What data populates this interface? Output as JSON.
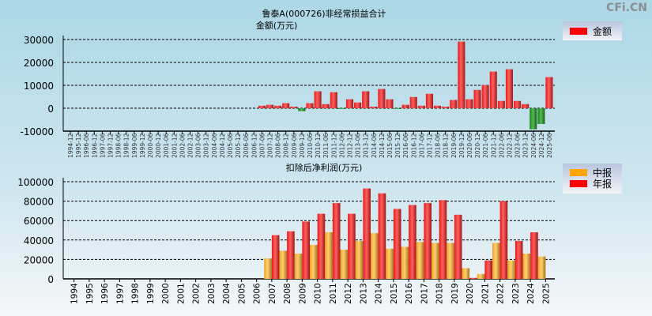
{
  "watermark": "CFi.CN",
  "colors": {
    "positive": "#ff2020",
    "negative": "#2e8b2e",
    "interim": "#f5a623",
    "annual": "#ff2020"
  },
  "chart_data": [
    {
      "type": "bar",
      "title": "鲁泰A(000726)非经常损益合计",
      "ylabel": "金额(万元)",
      "legend": [
        {
          "label": "金额",
          "color": "#ff0000"
        }
      ],
      "legend_position": "top-right",
      "ylim": [
        -10000,
        30000
      ],
      "yticks": [
        30000,
        20000,
        10000,
        0,
        -10000
      ],
      "grid": true,
      "categories": [
        "1994-12",
        "1995-12",
        "1996-06",
        "1996-12",
        "1997-06",
        "1997-12",
        "1998-06",
        "1998-12",
        "1999-06",
        "1999-12",
        "2000-06",
        "2000-12",
        "2001-06",
        "2001-12",
        "2002-06",
        "2002-12",
        "2003-06",
        "2003-12",
        "2004-06",
        "2004-12",
        "2005-06",
        "2005-12",
        "2006-06",
        "2006-12",
        "2007-06",
        "2007-12",
        "2008-06",
        "2008-12",
        "2009-06",
        "2009-12",
        "2010-06",
        "2010-12",
        "2011-06",
        "2011-12",
        "2012-06",
        "2012-12",
        "2013-06",
        "2013-12",
        "2014-06",
        "2014-12",
        "2015-06",
        "2015-12",
        "2016-06",
        "2016-12",
        "2017-06",
        "2017-12",
        "2018-06",
        "2018-12",
        "2019-06",
        "2019-12",
        "2020-06",
        "2020-12",
        "2021-06",
        "2021-12",
        "2022-06",
        "2022-12",
        "2023-06",
        "2023-12",
        "2024-06",
        "2024-12",
        "2025-06"
      ],
      "values": [
        null,
        null,
        null,
        null,
        null,
        null,
        null,
        null,
        null,
        null,
        null,
        null,
        null,
        null,
        null,
        null,
        null,
        null,
        null,
        null,
        null,
        null,
        null,
        null,
        1100,
        1500,
        1100,
        2200,
        700,
        -1300,
        2200,
        7400,
        1800,
        7000,
        -200,
        3900,
        2500,
        7400,
        700,
        8400,
        3900,
        -200,
        1500,
        4900,
        1100,
        6300,
        1100,
        700,
        3600,
        29100,
        3900,
        8000,
        10100,
        16000,
        3200,
        17000,
        3200,
        1800,
        -9200,
        -6900,
        13600
      ]
    },
    {
      "type": "bar",
      "title": "扣除后净利润(万元)",
      "legend": [
        {
          "label": "中报",
          "color": "#ffa500"
        },
        {
          "label": "年报",
          "color": "#ff0000"
        }
      ],
      "legend_position": "top-right",
      "ylim": [
        0,
        100000
      ],
      "yticks": [
        100000,
        80000,
        60000,
        40000,
        20000,
        0
      ],
      "grid": true,
      "categories": [
        "1994",
        "1995",
        "1996",
        "1997",
        "1998",
        "1999",
        "2000",
        "2001",
        "2002",
        "2003",
        "2004",
        "2005",
        "2006",
        "2007",
        "2008",
        "2009",
        "2010",
        "2011",
        "2012",
        "2013",
        "2014",
        "2015",
        "2016",
        "2017",
        "2018",
        "2019",
        "2020",
        "2021",
        "2022",
        "2023",
        "2024",
        "2025"
      ],
      "series": [
        {
          "name": "中报",
          "values": [
            null,
            null,
            null,
            null,
            null,
            null,
            null,
            null,
            null,
            null,
            null,
            null,
            null,
            21000,
            29000,
            26000,
            35000,
            48000,
            30000,
            39000,
            47000,
            31000,
            33000,
            38000,
            37000,
            37000,
            11000,
            5000,
            37000,
            19000,
            26000,
            23000
          ]
        },
        {
          "name": "年报",
          "values": [
            null,
            null,
            null,
            null,
            null,
            null,
            null,
            null,
            null,
            null,
            null,
            null,
            null,
            45000,
            49000,
            59000,
            67000,
            78000,
            67000,
            93000,
            88000,
            72000,
            76000,
            78000,
            81000,
            66000,
            1000,
            19000,
            80000,
            39000,
            48000,
            null
          ]
        }
      ]
    }
  ]
}
